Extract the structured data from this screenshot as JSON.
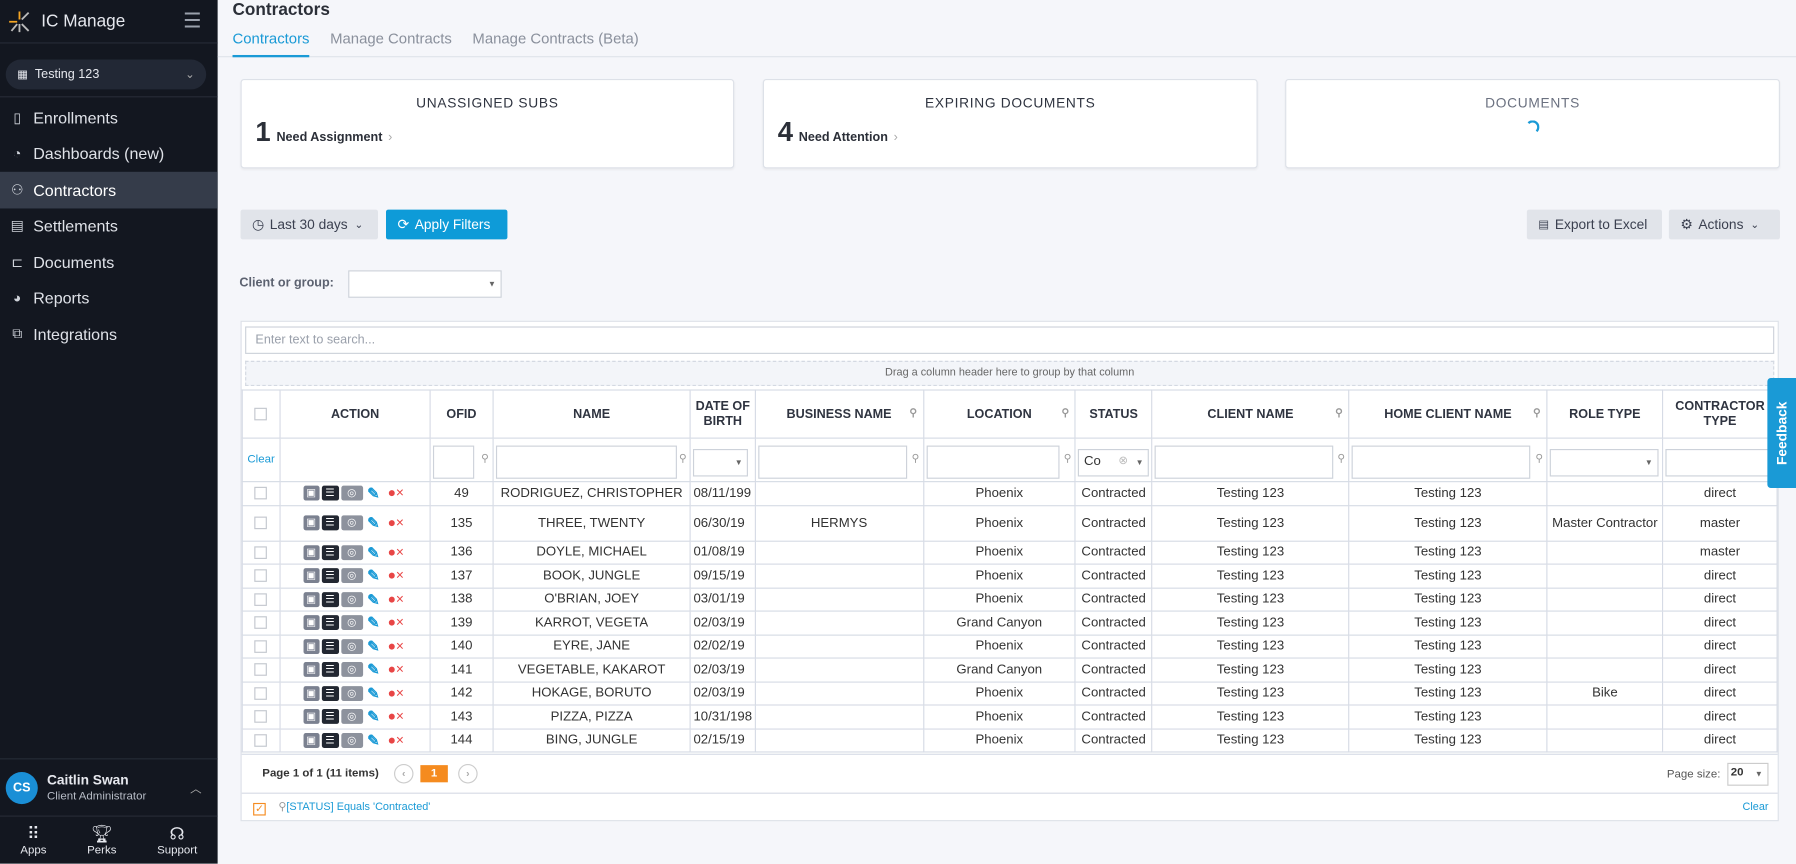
{
  "app": {
    "name": "IC Manage",
    "client": "Testing 123"
  },
  "sidebar": {
    "items": [
      {
        "label": "Enrollments",
        "icon": "clipboard-icon"
      },
      {
        "label": "Dashboards (new)",
        "icon": "gauge-icon"
      },
      {
        "label": "Contractors",
        "icon": "users-icon",
        "active": true
      },
      {
        "label": "Settlements",
        "icon": "receipt-icon"
      },
      {
        "label": "Documents",
        "icon": "folder-icon"
      },
      {
        "label": "Reports",
        "icon": "pie-chart-icon"
      },
      {
        "label": "Integrations",
        "icon": "puzzle-icon"
      }
    ],
    "user": {
      "initials": "CS",
      "name": "Caitlin Swan",
      "role": "Client Administrator"
    },
    "bottom": [
      {
        "label": "Apps",
        "icon": "grid-icon"
      },
      {
        "label": "Perks",
        "icon": "trophy-icon"
      },
      {
        "label": "Support",
        "icon": "headset-icon"
      }
    ]
  },
  "header": {
    "title": "Contractors",
    "tabs": [
      "Contractors",
      "Manage Contracts",
      "Manage Contracts (Beta)"
    ]
  },
  "cards": [
    {
      "title": "UNASSIGNED SUBS",
      "count": "1",
      "label": "Need Assignment"
    },
    {
      "title": "EXPIRING DOCUMENTS",
      "count": "4",
      "label": "Need Attention"
    },
    {
      "title": "DOCUMENTS",
      "loading": true
    }
  ],
  "toolbar": {
    "date_range": "Last 30 days",
    "apply": "Apply Filters",
    "export": "Export to Excel",
    "actions": "Actions",
    "client_group_label": "Client or group:"
  },
  "grid": {
    "search_placeholder": "Enter text to search...",
    "group_hint": "Drag a column header here to group by that column",
    "columns": [
      "ACTION",
      "OFID",
      "NAME",
      "DATE OF BIRTH",
      "BUSINESS NAME",
      "LOCATION",
      "STATUS",
      "CLIENT NAME",
      "HOME CLIENT NAME",
      "ROLE TYPE",
      "CONTRACTOR TYPE"
    ],
    "clear_label": "Clear",
    "status_filter": "Co",
    "rows": [
      {
        "ofid": "49",
        "name": "RODRIGUEZ, CHRISTOPHER",
        "dob": "08/11/199",
        "business": "",
        "location": "Phoenix",
        "status": "Contracted",
        "client": "Testing 123",
        "home": "Testing 123",
        "role": "",
        "ctype": "direct"
      },
      {
        "ofid": "135",
        "name": "THREE, TWENTY",
        "dob": "06/30/19",
        "business": "HERMYS",
        "location": "Phoenix",
        "status": "Contracted",
        "client": "Testing 123",
        "home": "Testing 123",
        "role": "Master Contractor",
        "ctype": "master"
      },
      {
        "ofid": "136",
        "name": "DOYLE, MICHAEL",
        "dob": "01/08/19",
        "business": "",
        "location": "Phoenix",
        "status": "Contracted",
        "client": "Testing 123",
        "home": "Testing 123",
        "role": "",
        "ctype": "master"
      },
      {
        "ofid": "137",
        "name": "BOOK, JUNGLE",
        "dob": "09/15/19",
        "business": "",
        "location": "Phoenix",
        "status": "Contracted",
        "client": "Testing 123",
        "home": "Testing 123",
        "role": "",
        "ctype": "direct"
      },
      {
        "ofid": "138",
        "name": "O'BRIAN, JOEY",
        "dob": "03/01/19",
        "business": "",
        "location": "Phoenix",
        "status": "Contracted",
        "client": "Testing 123",
        "home": "Testing 123",
        "role": "",
        "ctype": "direct"
      },
      {
        "ofid": "139",
        "name": "KARROT, VEGETA",
        "dob": "02/03/19",
        "business": "",
        "location": "Grand Canyon",
        "status": "Contracted",
        "client": "Testing 123",
        "home": "Testing 123",
        "role": "",
        "ctype": "direct"
      },
      {
        "ofid": "140",
        "name": "EYRE, JANE",
        "dob": "02/02/19",
        "business": "",
        "location": "Phoenix",
        "status": "Contracted",
        "client": "Testing 123",
        "home": "Testing 123",
        "role": "",
        "ctype": "direct"
      },
      {
        "ofid": "141",
        "name": "VEGETABLE, KAKAROT",
        "dob": "02/03/19",
        "business": "",
        "location": "Grand Canyon",
        "status": "Contracted",
        "client": "Testing 123",
        "home": "Testing 123",
        "role": "",
        "ctype": "direct"
      },
      {
        "ofid": "142",
        "name": "HOKAGE, BORUTO",
        "dob": "02/03/19",
        "business": "",
        "location": "Phoenix",
        "status": "Contracted",
        "client": "Testing 123",
        "home": "Testing 123",
        "role": "Bike",
        "ctype": "direct"
      },
      {
        "ofid": "143",
        "name": "PIZZA, PIZZA",
        "dob": "10/31/198",
        "business": "",
        "location": "Phoenix",
        "status": "Contracted",
        "client": "Testing 123",
        "home": "Testing 123",
        "role": "",
        "ctype": "direct"
      },
      {
        "ofid": "144",
        "name": "BING, JUNGLE",
        "dob": "02/15/19",
        "business": "",
        "location": "Phoenix",
        "status": "Contracted",
        "client": "Testing 123",
        "home": "Testing 123",
        "role": "",
        "ctype": "direct"
      }
    ],
    "pager": {
      "info": "Page 1 of 1 (11 items)",
      "current": "1",
      "page_size_label": "Page size:",
      "page_size": "20"
    },
    "active_filter": "[STATUS] Equals 'Contracted'",
    "active_filter_clear": "Clear"
  },
  "feedback": "Feedback",
  "colors": {
    "accent": "#0e9bd8",
    "sidebar": "#131720",
    "pager_active": "#f58b1f",
    "remove": "#e84545"
  }
}
